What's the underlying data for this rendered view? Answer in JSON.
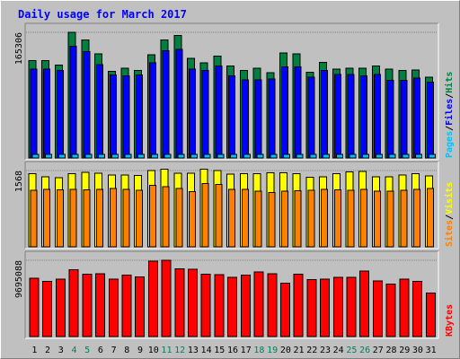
{
  "chart_data": {
    "type": "bar",
    "title": "Daily usage for March 2017",
    "categories": [
      "1",
      "2",
      "3",
      "4",
      "5",
      "6",
      "7",
      "8",
      "9",
      "10",
      "11",
      "12",
      "13",
      "14",
      "15",
      "16",
      "17",
      "18",
      "19",
      "20",
      "21",
      "22",
      "23",
      "24",
      "25",
      "26",
      "27",
      "28",
      "29",
      "30",
      "31"
    ],
    "weekend_days": [
      "4",
      "5",
      "11",
      "12",
      "18",
      "19",
      "25",
      "26"
    ],
    "panels": [
      {
        "y_max_label": "165306",
        "legend": [
          "Pages",
          "Files",
          "Hits"
        ],
        "y_max": 165306,
        "series": [
          {
            "name": "Hits",
            "color": "#008040",
            "values": [
              128000,
              128000,
              122000,
              165306,
              155000,
              137000,
              114000,
              118000,
              115000,
              136000,
              155000,
              161000,
              131000,
              125000,
              134000,
              121000,
              115000,
              118000,
              112000,
              138000,
              137000,
              113000,
              126000,
              117000,
              118000,
              118000,
              121000,
              117000,
              115000,
              116000,
              106000
            ]
          },
          {
            "name": "Files",
            "color": "#0000ff",
            "values": [
              117000,
              117000,
              115000,
              147000,
              140000,
              123000,
              109000,
              108000,
              109000,
              125000,
              141000,
              143000,
              117000,
              115000,
              121000,
              108000,
              103000,
              103000,
              104000,
              120000,
              120000,
              106000,
              115000,
              110000,
              110000,
              108000,
              110000,
              102000,
              102000,
              105000,
              100000
            ]
          },
          {
            "name": "Pages",
            "color": "#00c0ff",
            "values": [
              5000,
              5000,
              5000,
              5000,
              5000,
              5000,
              5000,
              5000,
              5000,
              5000,
              5000,
              5000,
              5000,
              5000,
              5000,
              5000,
              5000,
              5000,
              5000,
              5000,
              5000,
              5000,
              5000,
              5000,
              5000,
              5000,
              5000,
              5000,
              5000,
              5000,
              5000
            ]
          }
        ]
      },
      {
        "y_max_label": "1568",
        "legend": [
          "Sites",
          "Visits"
        ],
        "y_max": 1568,
        "series": [
          {
            "name": "Visits",
            "color": "#ffff00",
            "values": [
              1500,
              1440,
              1420,
              1500,
              1530,
              1510,
              1480,
              1480,
              1470,
              1570,
              1600,
              1510,
              1510,
              1600,
              1570,
              1490,
              1500,
              1500,
              1520,
              1520,
              1500,
              1430,
              1440,
              1500,
              1540,
              1550,
              1440,
              1440,
              1480,
              1500,
              1460
            ]
          },
          {
            "name": "Sites",
            "color": "#ff8000",
            "values": [
              1160,
              1180,
              1170,
              1180,
              1170,
              1180,
              1200,
              1180,
              1160,
              1260,
              1240,
              1200,
              1130,
              1300,
              1280,
              1180,
              1180,
              1140,
              1120,
              1140,
              1150,
              1160,
              1180,
              1170,
              1160,
              1180,
              1140,
              1140,
              1160,
              1180,
              1200
            ]
          }
        ]
      },
      {
        "y_max_label": "9695088",
        "legend": [
          "KBytes"
        ],
        "y_max": 9695088,
        "series": [
          {
            "name": "KBytes",
            "color": "#ff0000",
            "values": [
              7400000,
              7000000,
              7300000,
              8500000,
              7900000,
              8000000,
              7300000,
              7800000,
              7600000,
              9600000,
              9695088,
              8600000,
              8550000,
              7950000,
              7850000,
              7550000,
              7800000,
              8200000,
              8000000,
              6800000,
              7950000,
              7250000,
              7300000,
              7500000,
              7550000,
              8300000,
              7100000,
              6700000,
              7300000,
              7000000,
              5550000
            ]
          }
        ]
      }
    ]
  },
  "colors": {
    "frame_bg": "#c0c0c0",
    "title": "#0000ff",
    "weekday_label": "#000000",
    "weekend_label": "#00805c",
    "panel_light": "#ffffff",
    "panel_dark": "#808080"
  }
}
